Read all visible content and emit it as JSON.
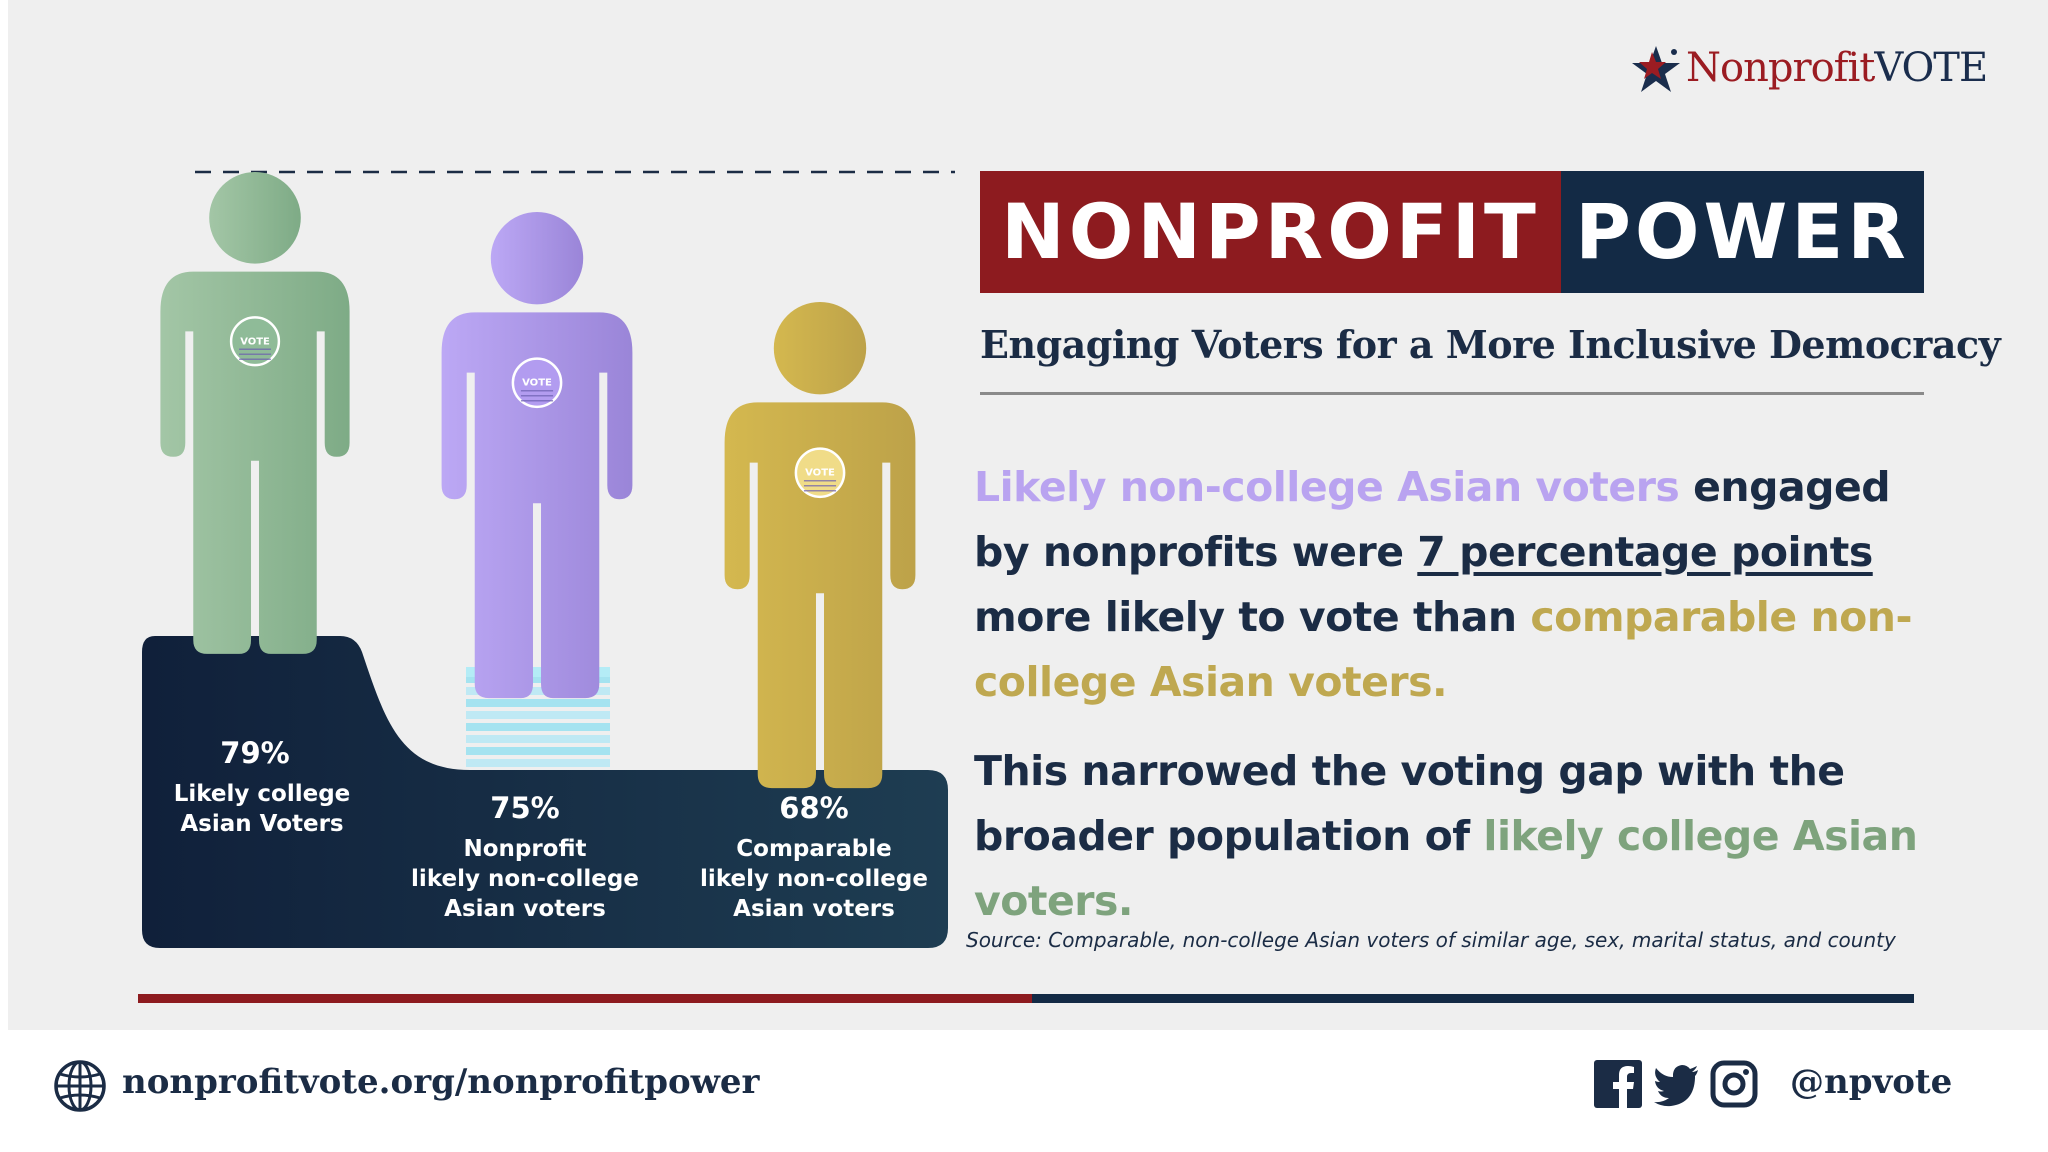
{
  "brand": {
    "logo_part1": "Nonprofit",
    "logo_part2": "VOTE",
    "colors": {
      "red": "#8d1b1f",
      "navy": "#132a45"
    }
  },
  "title": {
    "left": "NONPROFIT",
    "right": "POWER",
    "subtitle": "Engaging Voters for a More Inclusive Democracy"
  },
  "message": {
    "p1_a": "Likely non-college Asian voters",
    "p1_b": " engaged by nonprofits were ",
    "p1_c": "7 percentage points",
    "p1_d": " more likely to vote than ",
    "p1_e": "comparable non-college Asian voters.",
    "p2_a": "This narrowed the voting gap with the broader population of ",
    "p2_b": "likely college Asian voters."
  },
  "source": "Source: Comparable, non-college Asian voters of similar age, sex, marital status, and county",
  "footer": {
    "url": "nonprofitvote.org/nonprofitpower",
    "handle": "@npvote",
    "icons": [
      "globe-icon",
      "facebook-icon",
      "twitter-icon",
      "instagram-icon"
    ]
  },
  "chart_data": {
    "type": "bar",
    "title": "",
    "xlabel": "",
    "ylabel": "",
    "categories": [
      [
        "Likely college",
        "Asian Voters"
      ],
      [
        "Nonprofit",
        "likely non-college",
        "Asian voters"
      ],
      [
        "Comparable",
        "likely non-college",
        "Asian voters"
      ]
    ],
    "values": [
      79,
      75,
      68
    ],
    "value_labels": [
      "79%",
      "75%",
      "68%"
    ],
    "colors": [
      "#8cb893",
      "#a996e6",
      "#c8ad4c"
    ],
    "badge_text": "VOTE"
  }
}
